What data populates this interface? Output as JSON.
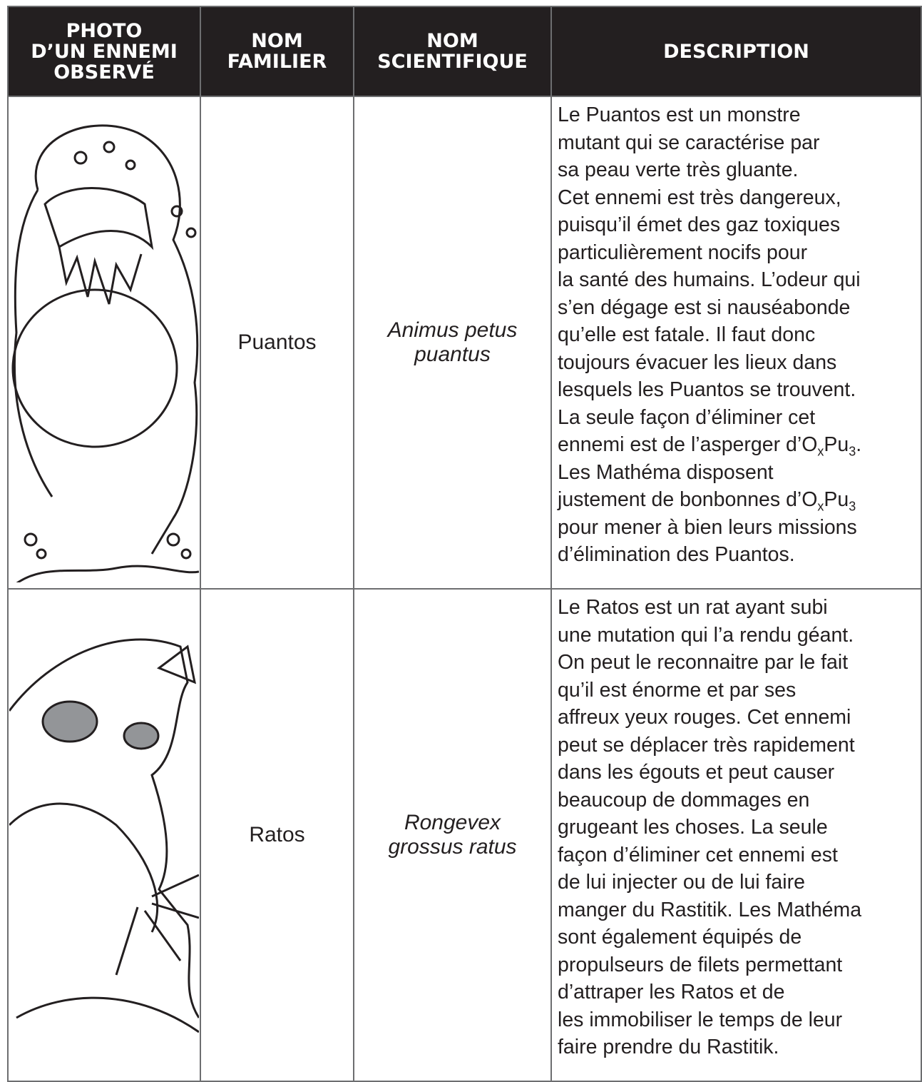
{
  "table": {
    "header": [
      [
        "PHOTO",
        "D’UN ENNEMI",
        "OBSERVÉ"
      ],
      [
        "NOM",
        "FAMILIER"
      ],
      [
        "NOM",
        "SCIENTIFIQUE"
      ],
      [
        "DESCRIPTION"
      ]
    ],
    "rows": [
      {
        "name": "Puantos",
        "scientific": [
          "Animus petus",
          "puantus"
        ],
        "description": [
          "Le Puantos est un monstre",
          "mutant qui se caractérise par",
          "sa peau verte très gluante.",
          "Cet ennemi est très dangereux,",
          "puisqu’il émet des gaz toxiques",
          "particulièrement nocifs pour",
          "la santé des humains. L’odeur qui",
          "s’en dégage est si nauséabonde",
          "qu’elle est fatale. Il faut donc",
          "toujours évacuer les lieux dans",
          "lesquels les Puantos se trouvent.",
          "La seule façon d’éliminer cet",
          [
            "ennemi est de l’asperger d’O",
            {
              "sub": "x"
            },
            "Pu",
            {
              "sub": "3"
            },
            "."
          ],
          "Les Mathéma disposent",
          [
            "justement de bonbonnes d’O",
            {
              "sub": "x"
            },
            "Pu",
            {
              "sub": "3"
            }
          ],
          "pour mener à bien leurs missions",
          "d’élimination des Puantos."
        ]
      },
      {
        "name": "Ratos",
        "scientific": [
          "Rongevex",
          "grossus ratus"
        ],
        "description": [
          "Le Ratos est un rat ayant subi",
          "une mutation qui l’a rendu géant.",
          "On peut le reconnaitre par le fait",
          "qu’il est énorme et par ses",
          "affreux yeux rouges. Cet ennemi",
          "peut se déplacer très rapidement",
          "dans les égouts et peut causer",
          "beaucoup de dommages en",
          "grugeant les choses. La seule",
          "façon d’éliminer cet ennemi est",
          "de lui injecter ou de lui faire",
          "manger du Rastitik. Les Mathéma",
          "sont également équipés de",
          "propulseurs de filets permettant",
          "d’attraper les Ratos et de",
          "les immobiliser le temps de leur",
          "faire prendre du Rastitik."
        ]
      }
    ]
  }
}
